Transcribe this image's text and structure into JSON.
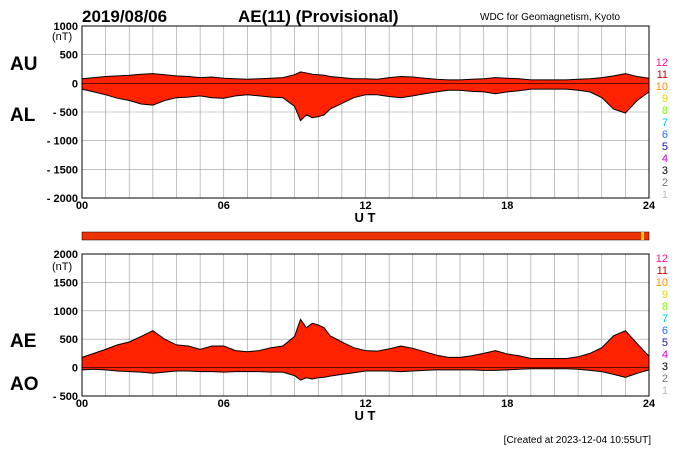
{
  "header": {
    "date": "2019/08/06",
    "title": "AE(11) (Provisional)",
    "source": "WDC for Geomagnetism, Kyoto"
  },
  "footer": {
    "created": "[Created at 2023-12-04 10:55UT]"
  },
  "colors": {
    "fill": "#ff2200",
    "outline": "#000000",
    "grid": "#999999",
    "strip": "#ee3300",
    "strip_mark": "#d6d600"
  },
  "station_legend": [
    {
      "label": "12",
      "color": "#ff1493"
    },
    {
      "label": "11",
      "color": "#cc0000"
    },
    {
      "label": "10",
      "color": "#ff8c00"
    },
    {
      "label": "9",
      "color": "#e6d800"
    },
    {
      "label": "8",
      "color": "#7cfc00"
    },
    {
      "label": "7",
      "color": "#00d0d0"
    },
    {
      "label": "6",
      "color": "#1e6fff"
    },
    {
      "label": "5",
      "color": "#1010c0"
    },
    {
      "label": "4",
      "color": "#cc00cc"
    },
    {
      "label": "3",
      "color": "#000000"
    },
    {
      "label": "2",
      "color": "#777777"
    },
    {
      "label": "1",
      "color": "#bbbbbb"
    }
  ],
  "chart_data": [
    {
      "type": "area",
      "series_labels": [
        "AU",
        "AL"
      ],
      "unit_label": "(nT)",
      "yticks": [
        "1000",
        "500",
        "0",
        "- 500",
        "- 1000",
        "- 1500",
        "- 2000"
      ],
      "ylim": [
        -2000,
        1000
      ],
      "xlim": [
        0,
        24
      ],
      "xticks": [
        "00",
        "06",
        "12",
        "18",
        "24"
      ],
      "xlabel": "U T",
      "grid": true,
      "x": [
        0,
        0.5,
        1,
        1.5,
        2,
        2.5,
        3,
        3.5,
        4,
        4.5,
        5,
        5.5,
        6,
        6.5,
        7,
        7.5,
        8,
        8.5,
        9,
        9.25,
        9.5,
        9.75,
        10,
        10.25,
        10.5,
        11,
        11.5,
        12,
        12.5,
        13,
        13.5,
        14,
        14.5,
        15,
        15.5,
        16,
        16.5,
        17,
        17.5,
        18,
        18.5,
        19,
        19.5,
        20,
        20.5,
        21,
        21.5,
        22,
        22.5,
        23,
        23.5,
        24
      ],
      "upper": [
        80,
        100,
        120,
        130,
        140,
        160,
        170,
        150,
        130,
        120,
        100,
        110,
        90,
        80,
        70,
        80,
        90,
        100,
        150,
        200,
        180,
        160,
        150,
        140,
        120,
        100,
        80,
        80,
        70,
        100,
        120,
        110,
        90,
        70,
        60,
        60,
        70,
        80,
        100,
        90,
        80,
        60,
        60,
        60,
        60,
        70,
        80,
        100,
        130,
        170,
        120,
        90
      ],
      "lower": [
        -100,
        -150,
        -200,
        -260,
        -300,
        -360,
        -380,
        -300,
        -250,
        -240,
        -220,
        -250,
        -260,
        -220,
        -200,
        -220,
        -240,
        -250,
        -400,
        -650,
        -550,
        -600,
        -580,
        -550,
        -450,
        -350,
        -250,
        -200,
        -200,
        -230,
        -250,
        -220,
        -180,
        -150,
        -120,
        -120,
        -140,
        -150,
        -180,
        -150,
        -130,
        -100,
        -100,
        -100,
        -100,
        -120,
        -150,
        -250,
        -450,
        -520,
        -300,
        -150
      ]
    },
    {
      "type": "area",
      "series_labels": [
        "AE",
        "AO"
      ],
      "unit_label": "(nT)",
      "yticks": [
        "2000",
        "1500",
        "1000",
        "500",
        "0",
        "- 500"
      ],
      "ylim": [
        -500,
        2000
      ],
      "xlim": [
        0,
        24
      ],
      "xticks": [
        "00",
        "06",
        "12",
        "18",
        "24"
      ],
      "xlabel": "U T",
      "grid": true,
      "x": [
        0,
        0.5,
        1,
        1.5,
        2,
        2.5,
        3,
        3.5,
        4,
        4.5,
        5,
        5.5,
        6,
        6.5,
        7,
        7.5,
        8,
        8.5,
        9,
        9.25,
        9.5,
        9.75,
        10,
        10.25,
        10.5,
        11,
        11.5,
        12,
        12.5,
        13,
        13.5,
        14,
        14.5,
        15,
        15.5,
        16,
        16.5,
        17,
        17.5,
        18,
        18.5,
        19,
        19.5,
        20,
        20.5,
        21,
        21.5,
        22,
        22.5,
        23,
        23.5,
        24
      ],
      "upper": [
        180,
        250,
        320,
        400,
        450,
        550,
        650,
        500,
        400,
        380,
        320,
        380,
        380,
        300,
        280,
        300,
        350,
        380,
        550,
        850,
        700,
        780,
        750,
        700,
        560,
        450,
        350,
        300,
        290,
        330,
        380,
        340,
        280,
        220,
        180,
        180,
        210,
        250,
        300,
        240,
        210,
        160,
        160,
        160,
        160,
        190,
        250,
        350,
        560,
        650,
        420,
        200
      ],
      "lower": [
        -40,
        -30,
        -40,
        -60,
        -70,
        -80,
        -100,
        -80,
        -60,
        -60,
        -70,
        -70,
        -80,
        -70,
        -70,
        -70,
        -80,
        -80,
        -140,
        -220,
        -180,
        -200,
        -180,
        -170,
        -150,
        -120,
        -90,
        -60,
        -60,
        -60,
        -70,
        -60,
        -50,
        -40,
        -40,
        -40,
        -40,
        -50,
        -50,
        -40,
        -30,
        -20,
        -20,
        -20,
        -20,
        -30,
        -50,
        -70,
        -120,
        -170,
        -100,
        -40
      ]
    }
  ]
}
